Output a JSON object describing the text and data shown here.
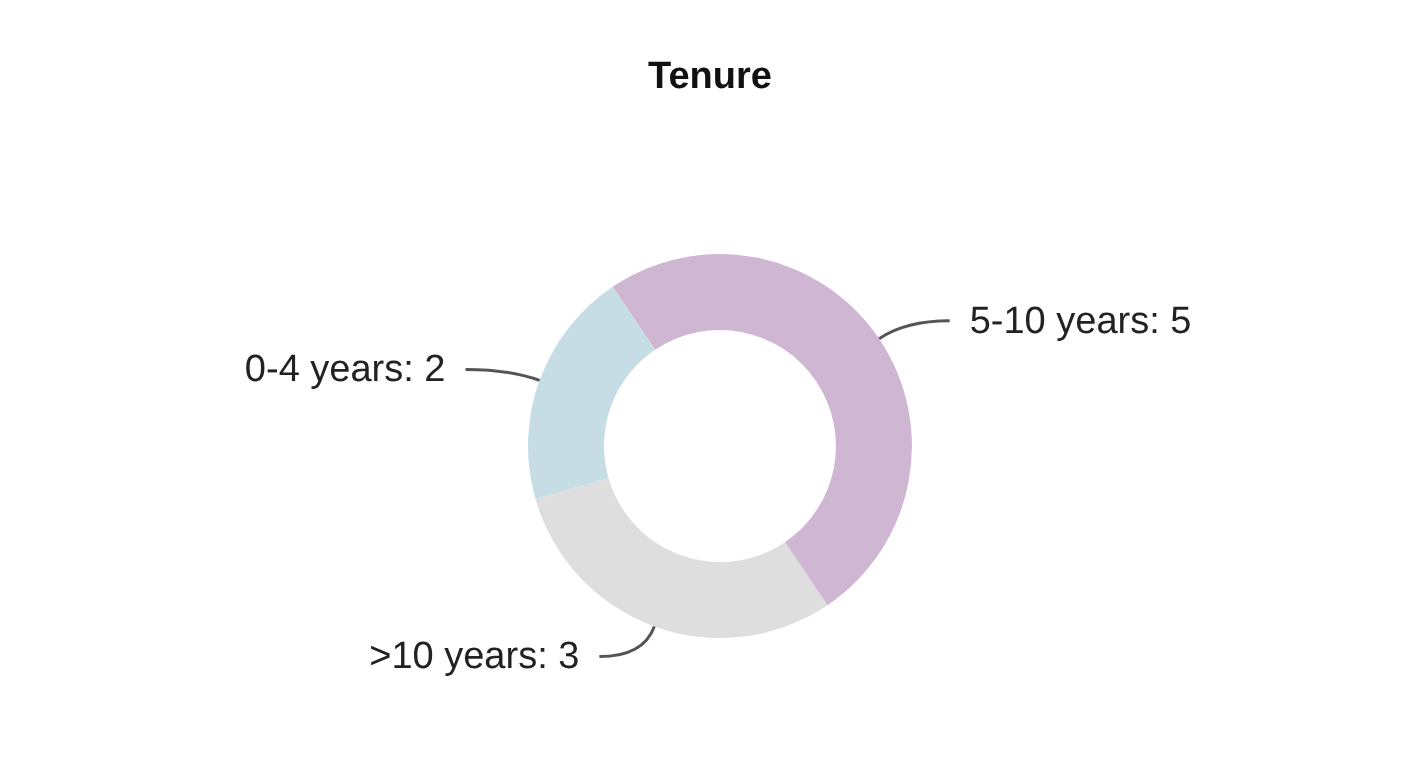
{
  "chart_data": {
    "type": "donut",
    "title": "Tenure",
    "categories": [
      "5-10 years: 5",
      ">10 years: 3",
      "0-4 years: 2"
    ],
    "values": [
      5,
      3,
      2
    ],
    "colors": [
      "#cfb6d2",
      "#dedede",
      "#c6dde6"
    ]
  }
}
